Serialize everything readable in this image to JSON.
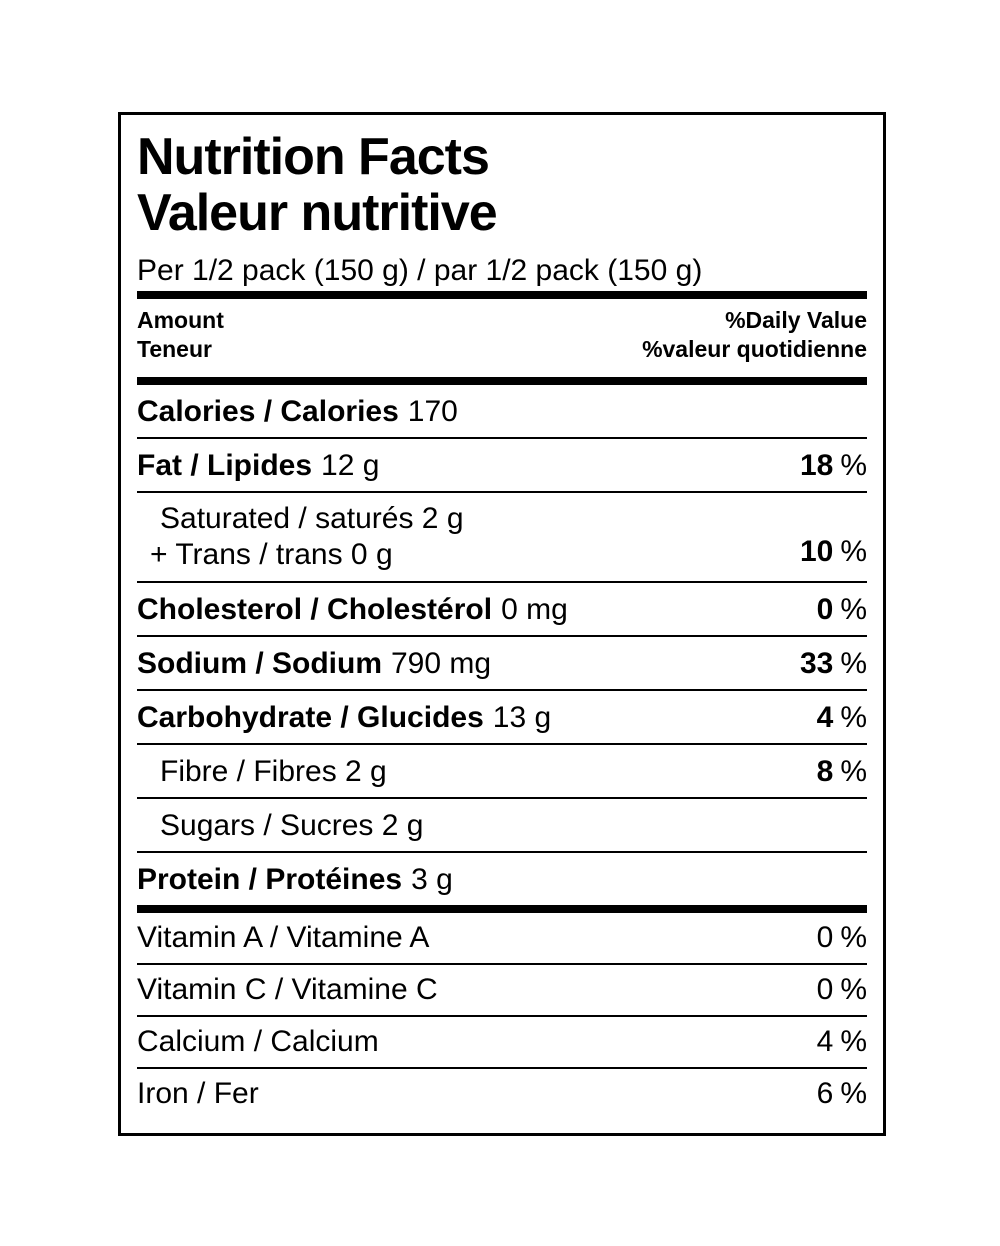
{
  "misc": {
    "percent": "%"
  },
  "label": {
    "title_en": "Nutrition Facts",
    "title_fr": "Valeur nutritive",
    "serving": "Per 1/2 pack (150 g) / par 1/2 pack (150 g)",
    "header": {
      "amount_en": "Amount",
      "amount_fr": "Teneur",
      "daily_value_en": "%Daily Value",
      "daily_value_fr": "%valeur quotidienne"
    },
    "nutrients": {
      "calories": {
        "name": "Calories / Calories",
        "amount": "170"
      },
      "fat": {
        "name": "Fat / Lipides",
        "amount": "12 g",
        "dv": "18"
      },
      "saturated_trans": {
        "line1": "Saturated / saturés 2 g",
        "line2": "+ Trans / trans 0 g",
        "dv": "10"
      },
      "cholesterol": {
        "name": "Cholesterol / Cholestérol",
        "amount": "0 mg",
        "dv": "0"
      },
      "sodium": {
        "name": "Sodium / Sodium",
        "amount": "790 mg",
        "dv": "33"
      },
      "carbohydrate": {
        "name": "Carbohydrate / Glucides",
        "amount": "13 g",
        "dv": "4"
      },
      "fibre": {
        "name": "Fibre / Fibres 2 g",
        "dv": "8"
      },
      "sugars": {
        "name": "Sugars / Sucres 2 g"
      },
      "protein": {
        "name": "Protein / Protéines",
        "amount": "3 g"
      }
    },
    "micronutrients": [
      {
        "name": "Vitamin A / Vitamine A",
        "dv": "0"
      },
      {
        "name": "Vitamin C / Vitamine C",
        "dv": "0"
      },
      {
        "name": "Calcium / Calcium",
        "dv": "4"
      },
      {
        "name": "Iron / Fer",
        "dv": "6"
      }
    ]
  }
}
